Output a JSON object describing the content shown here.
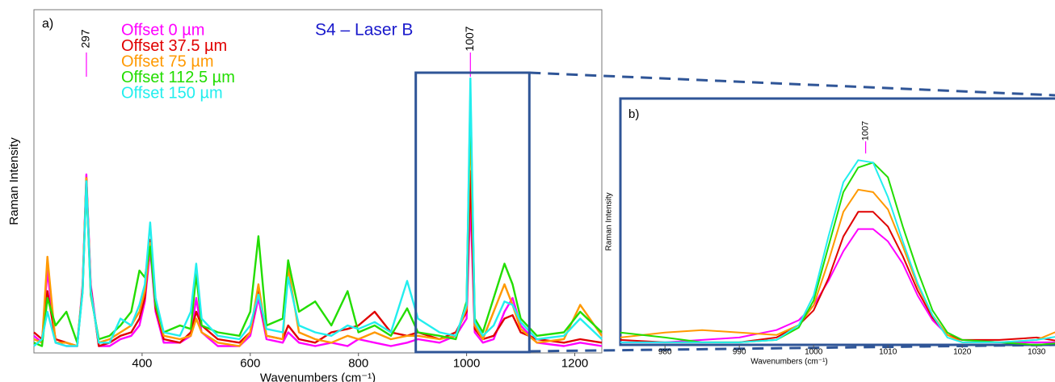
{
  "chart_data": [
    {
      "type": "line",
      "panel_label": "a)",
      "title": "S4 – Laser B",
      "x_label": "Wavenumbers (cm⁻¹)",
      "y_label": "Raman Intensity",
      "xlim": [
        200,
        1250
      ],
      "ylim": [
        0,
        100
      ],
      "xticks": [
        400,
        600,
        800,
        1000,
        1200
      ],
      "peak_labels": [
        297,
        1007
      ],
      "x": [
        200,
        215,
        225,
        240,
        260,
        280,
        290,
        297,
        305,
        320,
        340,
        360,
        380,
        395,
        405,
        415,
        425,
        440,
        470,
        490,
        500,
        510,
        540,
        580,
        600,
        615,
        630,
        660,
        670,
        690,
        720,
        750,
        780,
        800,
        830,
        860,
        890,
        910,
        950,
        980,
        1000,
        1007,
        1015,
        1030,
        1050,
        1070,
        1085,
        1100,
        1130,
        1180,
        1210,
        1250
      ],
      "series": [
        {
          "name": "Offset 0 µm",
          "color": "#ff00ff",
          "values": [
            5,
            3,
            24,
            3,
            2,
            2,
            20,
            52,
            20,
            2,
            2,
            4,
            5,
            8,
            15,
            30,
            12,
            3,
            3,
            5,
            16,
            6,
            2,
            2,
            5,
            16,
            4,
            3,
            6,
            3,
            2,
            3,
            2,
            4,
            3,
            2,
            3,
            4,
            3,
            5,
            10,
            45,
            6,
            3,
            4,
            12,
            16,
            8,
            3,
            2,
            3,
            2
          ]
        },
        {
          "name": "Offset 37.5 µm",
          "color": "#e00000",
          "values": [
            6,
            4,
            18,
            4,
            3,
            2,
            19,
            51,
            19,
            2,
            3,
            5,
            6,
            10,
            16,
            33,
            13,
            4,
            3,
            6,
            12,
            8,
            4,
            3,
            6,
            18,
            5,
            4,
            8,
            4,
            3,
            6,
            7,
            8,
            12,
            6,
            5,
            6,
            4,
            6,
            12,
            53,
            7,
            4,
            5,
            10,
            11,
            6,
            4,
            3,
            4,
            3
          ]
        },
        {
          "name": "Offset 75 µm",
          "color": "#ff9900",
          "values": [
            4,
            3,
            28,
            3,
            3,
            2,
            19,
            51,
            18,
            3,
            4,
            6,
            8,
            12,
            18,
            32,
            14,
            5,
            4,
            5,
            10,
            6,
            3,
            2,
            6,
            20,
            5,
            4,
            25,
            6,
            4,
            3,
            5,
            4,
            6,
            4,
            5,
            5,
            4,
            5,
            13,
            69,
            8,
            4,
            12,
            20,
            14,
            7,
            3,
            4,
            14,
            5
          ]
        },
        {
          "name": "Offset 112.5 µm",
          "color": "#22dd00",
          "values": [
            3,
            2,
            16,
            8,
            12,
            3,
            18,
            50,
            17,
            4,
            5,
            8,
            12,
            24,
            22,
            31,
            14,
            6,
            8,
            7,
            23,
            8,
            6,
            5,
            12,
            34,
            8,
            10,
            27,
            12,
            15,
            8,
            18,
            6,
            8,
            5,
            13,
            6,
            5,
            4,
            15,
            75,
            10,
            6,
            16,
            26,
            20,
            10,
            5,
            6,
            12,
            6
          ]
        },
        {
          "name": "Offset 150 µm",
          "color": "#22eeee",
          "values": [
            2,
            4,
            12,
            3,
            2,
            2,
            18,
            50,
            18,
            3,
            3,
            10,
            8,
            14,
            20,
            38,
            16,
            6,
            5,
            12,
            26,
            10,
            5,
            4,
            8,
            17,
            7,
            6,
            22,
            8,
            6,
            5,
            8,
            7,
            9,
            6,
            21,
            10,
            6,
            5,
            14,
            80,
            9,
            5,
            8,
            15,
            14,
            9,
            4,
            5,
            10,
            4
          ]
        }
      ]
    },
    {
      "type": "line",
      "panel_label": "b)",
      "x_label": "Wavenumbers (cm⁻¹)",
      "y_label": "Raman Intensity",
      "xlim": [
        974,
        1034
      ],
      "ylim": [
        0,
        100
      ],
      "xticks": [
        980,
        990,
        1000,
        1010,
        1020,
        1030
      ],
      "peak_labels": [
        1007
      ],
      "x": [
        974,
        980,
        985,
        990,
        995,
        998,
        1000,
        1002,
        1004,
        1006,
        1008,
        1010,
        1012,
        1014,
        1016,
        1018,
        1020,
        1025,
        1030,
        1034
      ],
      "series": [
        {
          "color": "#ff00ff",
          "values": [
            1,
            1,
            2,
            3,
            6,
            10,
            16,
            26,
            38,
            47,
            47,
            42,
            33,
            20,
            10,
            4,
            2,
            1,
            1,
            1
          ]
        },
        {
          "color": "#e00000",
          "values": [
            2,
            1,
            1,
            1,
            3,
            8,
            14,
            27,
            44,
            54,
            54,
            48,
            36,
            22,
            11,
            4,
            2,
            2,
            3,
            1
          ]
        },
        {
          "color": "#ff9900",
          "values": [
            3,
            5,
            6,
            5,
            4,
            8,
            16,
            34,
            54,
            63,
            62,
            55,
            40,
            24,
            12,
            4,
            1,
            1,
            2,
            7
          ]
        },
        {
          "color": "#22dd00",
          "values": [
            5,
            3,
            1,
            1,
            2,
            7,
            18,
            40,
            62,
            72,
            74,
            68,
            48,
            30,
            14,
            5,
            2,
            1,
            0,
            1
          ]
        },
        {
          "color": "#22eeee",
          "values": [
            1,
            1,
            1,
            1,
            2,
            8,
            20,
            44,
            66,
            75,
            74,
            60,
            42,
            25,
            12,
            3,
            1,
            1,
            2,
            4
          ]
        }
      ]
    }
  ]
}
